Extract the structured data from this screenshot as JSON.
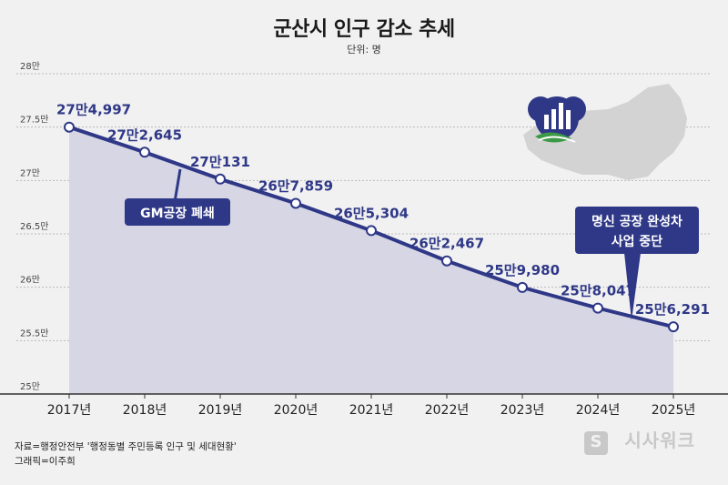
{
  "title": "군산시 인구 감소 추세",
  "unit": "단위: 명",
  "source": "자료=행정안전부 '행정동별 주민등록 인구 및 세대현황'",
  "credit": "그래픽=이주희",
  "brand": "시사워크",
  "colors": {
    "line": "#2f3887",
    "area": "#d6d6e5",
    "label": "#2f3887",
    "callout": "#2f3887"
  },
  "chart_data": {
    "type": "area",
    "categories": [
      "2017년",
      "2018년",
      "2019년",
      "2020년",
      "2021년",
      "2022년",
      "2023년",
      "2024년",
      "2025년"
    ],
    "values": [
      274997,
      272645,
      270131,
      267859,
      265304,
      262467,
      259980,
      258047,
      256291
    ],
    "data_labels": [
      "27만4,997",
      "27만2,645",
      "27만131",
      "26만7,859",
      "26만5,304",
      "26만2,467",
      "25만9,980",
      "25만8,047",
      "25만6,291"
    ],
    "yticks": [
      250000,
      255000,
      260000,
      265000,
      270000,
      275000,
      280000
    ],
    "ytick_labels": [
      "25만",
      "25.5만",
      "26만",
      "26.5만",
      "27만",
      "27.5만",
      "28만"
    ],
    "ylim": [
      250000,
      280000
    ],
    "grid": true,
    "annotations": [
      {
        "text": "GM공장 폐쇄",
        "x": "2018년"
      },
      {
        "text": "명신 공장 완성차 사업 중단",
        "x": "2025년"
      }
    ],
    "icons": [
      "map-icon",
      "city-emblem-icon",
      "population-decline-icon"
    ]
  }
}
